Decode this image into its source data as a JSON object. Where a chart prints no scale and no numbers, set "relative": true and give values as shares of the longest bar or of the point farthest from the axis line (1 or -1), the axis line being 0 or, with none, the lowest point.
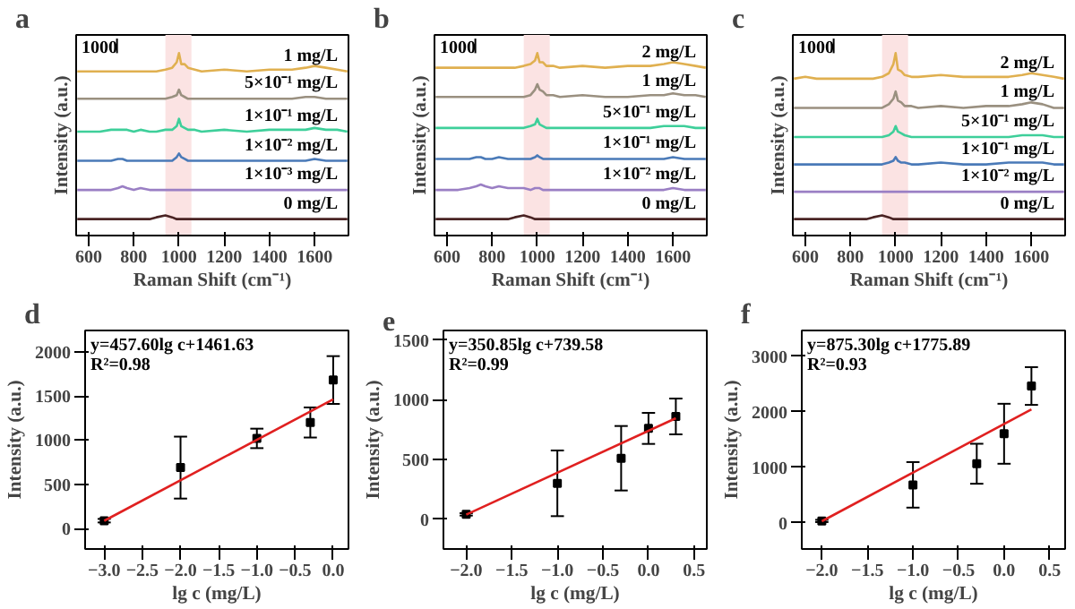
{
  "chart_data": [
    {
      "type": "line",
      "title": "a",
      "xlabel": "Raman Shift (cm⁻¹)",
      "ylabel": "Intensity (a.u.)",
      "relative": true,
      "xlim": [
        545,
        1750
      ],
      "xticks": [
        600,
        800,
        1000,
        1200,
        1400,
        1600
      ],
      "bands": [
        {
          "axis": "x",
          "from": 940,
          "to": 1055,
          "color": "#fbe3e3"
        }
      ],
      "annotations": [
        "1000"
      ],
      "x": [
        550,
        600,
        650,
        700,
        730,
        750,
        770,
        800,
        830,
        870,
        900,
        940,
        970,
        990,
        1000,
        1010,
        1025,
        1040,
        1070,
        1100,
        1200,
        1300,
        1400,
        1500,
        1560,
        1600,
        1650,
        1700,
        1745
      ],
      "series": [
        {
          "name": "0 mg/L",
          "color": "#4a2424",
          "values": [
            0.09,
            0.09,
            0.09,
            0.09,
            0.09,
            0.09,
            0.09,
            0.09,
            0.09,
            0.09,
            0.1,
            0.11,
            0.1,
            0.09,
            0.09,
            0.09,
            0.09,
            0.09,
            0.09,
            0.09,
            0.09,
            0.09,
            0.09,
            0.09,
            0.09,
            0.09,
            0.09,
            0.09,
            0.09
          ]
        },
        {
          "name": "1×10⁻³ mg/L",
          "color": "#9a7fc4",
          "values": [
            0.25,
            0.25,
            0.25,
            0.25,
            0.26,
            0.27,
            0.26,
            0.25,
            0.26,
            0.25,
            0.25,
            0.25,
            0.25,
            0.25,
            0.25,
            0.25,
            0.25,
            0.25,
            0.25,
            0.25,
            0.25,
            0.25,
            0.25,
            0.25,
            0.25,
            0.25,
            0.25,
            0.25,
            0.25
          ]
        },
        {
          "name": "1×10⁻² mg/L",
          "color": "#4a7ab8",
          "values": [
            0.41,
            0.41,
            0.41,
            0.41,
            0.42,
            0.42,
            0.41,
            0.41,
            0.41,
            0.41,
            0.41,
            0.41,
            0.41,
            0.43,
            0.45,
            0.43,
            0.42,
            0.41,
            0.41,
            0.41,
            0.41,
            0.41,
            0.41,
            0.41,
            0.41,
            0.42,
            0.41,
            0.41,
            0.41
          ]
        },
        {
          "name": "1×10⁻¹ mg/L",
          "color": "#3ecf9a",
          "values": [
            0.57,
            0.57,
            0.57,
            0.58,
            0.58,
            0.58,
            0.58,
            0.57,
            0.58,
            0.57,
            0.57,
            0.58,
            0.58,
            0.6,
            0.64,
            0.6,
            0.59,
            0.58,
            0.58,
            0.57,
            0.58,
            0.57,
            0.58,
            0.58,
            0.58,
            0.59,
            0.58,
            0.58,
            0.57
          ]
        },
        {
          "name": "5×10⁻¹ mg/L",
          "color": "#9a9080",
          "values": [
            0.75,
            0.75,
            0.75,
            0.75,
            0.75,
            0.75,
            0.75,
            0.75,
            0.75,
            0.75,
            0.75,
            0.75,
            0.76,
            0.77,
            0.8,
            0.77,
            0.76,
            0.75,
            0.75,
            0.75,
            0.75,
            0.75,
            0.75,
            0.75,
            0.76,
            0.76,
            0.75,
            0.75,
            0.75
          ]
        },
        {
          "name": "1 mg/L",
          "color": "#e0b050",
          "values": [
            0.9,
            0.9,
            0.9,
            0.9,
            0.9,
            0.9,
            0.9,
            0.9,
            0.9,
            0.9,
            0.9,
            0.91,
            0.92,
            0.95,
            1.0,
            0.94,
            0.94,
            0.92,
            0.91,
            0.9,
            0.91,
            0.9,
            0.91,
            0.91,
            0.92,
            0.93,
            0.92,
            0.91,
            0.9
          ]
        }
      ]
    },
    {
      "type": "line",
      "title": "b",
      "xlabel": "Raman Shift (cm⁻¹)",
      "ylabel": "Intensity (a.u.)",
      "relative": true,
      "xlim": [
        545,
        1750
      ],
      "xticks": [
        600,
        800,
        1000,
        1200,
        1400,
        1600
      ],
      "bands": [
        {
          "axis": "x",
          "from": 940,
          "to": 1055,
          "color": "#fbe3e3"
        }
      ],
      "annotations": [
        "1000"
      ],
      "x": [
        550,
        600,
        650,
        700,
        730,
        750,
        770,
        800,
        830,
        870,
        900,
        940,
        970,
        990,
        1000,
        1010,
        1025,
        1040,
        1070,
        1100,
        1200,
        1300,
        1400,
        1500,
        1560,
        1600,
        1650,
        1700,
        1745
      ],
      "series": [
        {
          "name": "0 mg/L",
          "color": "#4a2424",
          "values": [
            0.09,
            0.09,
            0.09,
            0.09,
            0.09,
            0.09,
            0.09,
            0.09,
            0.09,
            0.09,
            0.1,
            0.11,
            0.1,
            0.09,
            0.09,
            0.09,
            0.09,
            0.09,
            0.09,
            0.09,
            0.09,
            0.09,
            0.09,
            0.09,
            0.09,
            0.09,
            0.09,
            0.09,
            0.09
          ]
        },
        {
          "name": "1×10⁻² mg/L",
          "color": "#9a7fc4",
          "values": [
            0.25,
            0.25,
            0.25,
            0.26,
            0.27,
            0.28,
            0.27,
            0.26,
            0.27,
            0.26,
            0.26,
            0.26,
            0.25,
            0.26,
            0.26,
            0.26,
            0.25,
            0.25,
            0.25,
            0.25,
            0.25,
            0.25,
            0.25,
            0.25,
            0.25,
            0.26,
            0.25,
            0.25,
            0.25
          ]
        },
        {
          "name": "1×10⁻¹ mg/L",
          "color": "#4a7ab8",
          "values": [
            0.42,
            0.42,
            0.42,
            0.42,
            0.43,
            0.43,
            0.42,
            0.42,
            0.43,
            0.42,
            0.42,
            0.42,
            0.42,
            0.43,
            0.44,
            0.43,
            0.42,
            0.42,
            0.42,
            0.42,
            0.42,
            0.42,
            0.42,
            0.42,
            0.42,
            0.43,
            0.42,
            0.42,
            0.42
          ]
        },
        {
          "name": "5×10⁻¹ mg/L",
          "color": "#3ecf9a",
          "values": [
            0.59,
            0.59,
            0.59,
            0.59,
            0.59,
            0.59,
            0.59,
            0.59,
            0.59,
            0.59,
            0.59,
            0.59,
            0.6,
            0.61,
            0.64,
            0.61,
            0.6,
            0.59,
            0.59,
            0.59,
            0.59,
            0.59,
            0.59,
            0.59,
            0.6,
            0.6,
            0.6,
            0.59,
            0.59
          ]
        },
        {
          "name": "1 mg/L",
          "color": "#9a9080",
          "values": [
            0.76,
            0.76,
            0.76,
            0.76,
            0.76,
            0.76,
            0.76,
            0.76,
            0.76,
            0.76,
            0.76,
            0.76,
            0.77,
            0.8,
            0.83,
            0.8,
            0.79,
            0.77,
            0.77,
            0.76,
            0.77,
            0.76,
            0.76,
            0.77,
            0.77,
            0.78,
            0.77,
            0.77,
            0.76
          ]
        },
        {
          "name": "2 mg/L",
          "color": "#e0b050",
          "values": [
            0.92,
            0.92,
            0.92,
            0.92,
            0.92,
            0.92,
            0.92,
            0.92,
            0.92,
            0.92,
            0.92,
            0.93,
            0.94,
            0.96,
            1.0,
            0.95,
            0.95,
            0.93,
            0.93,
            0.92,
            0.93,
            0.92,
            0.93,
            0.93,
            0.94,
            0.95,
            0.94,
            0.93,
            0.92
          ]
        }
      ]
    },
    {
      "type": "line",
      "title": "c",
      "xlabel": "Raman Shift (cm⁻¹)",
      "ylabel": "Intensity (a.u.)",
      "relative": true,
      "xlim": [
        545,
        1750
      ],
      "xticks": [
        600,
        800,
        1000,
        1200,
        1400,
        1600
      ],
      "bands": [
        {
          "axis": "x",
          "from": 940,
          "to": 1055,
          "color": "#fbe3e3"
        }
      ],
      "annotations": [
        "1000"
      ],
      "x": [
        550,
        600,
        650,
        700,
        730,
        750,
        770,
        800,
        830,
        870,
        900,
        940,
        970,
        990,
        1000,
        1010,
        1025,
        1040,
        1070,
        1100,
        1200,
        1300,
        1400,
        1500,
        1560,
        1600,
        1650,
        1700,
        1745
      ],
      "series": [
        {
          "name": "0 mg/L",
          "color": "#4a2424",
          "values": [
            0.09,
            0.09,
            0.09,
            0.09,
            0.09,
            0.09,
            0.09,
            0.09,
            0.09,
            0.09,
            0.1,
            0.11,
            0.1,
            0.09,
            0.09,
            0.09,
            0.09,
            0.09,
            0.09,
            0.09,
            0.09,
            0.09,
            0.09,
            0.09,
            0.09,
            0.09,
            0.09,
            0.09,
            0.09
          ]
        },
        {
          "name": "1×10⁻² mg/L",
          "color": "#9a7fc4",
          "values": [
            0.24,
            0.24,
            0.24,
            0.24,
            0.24,
            0.24,
            0.24,
            0.24,
            0.24,
            0.24,
            0.24,
            0.24,
            0.24,
            0.24,
            0.24,
            0.24,
            0.24,
            0.24,
            0.24,
            0.24,
            0.24,
            0.24,
            0.24,
            0.24,
            0.24,
            0.24,
            0.24,
            0.24,
            0.24
          ]
        },
        {
          "name": "1×10⁻¹ mg/L",
          "color": "#4a7ab8",
          "values": [
            0.39,
            0.39,
            0.39,
            0.39,
            0.39,
            0.39,
            0.39,
            0.39,
            0.39,
            0.39,
            0.39,
            0.39,
            0.4,
            0.41,
            0.43,
            0.41,
            0.4,
            0.4,
            0.39,
            0.39,
            0.4,
            0.39,
            0.39,
            0.4,
            0.4,
            0.4,
            0.4,
            0.39,
            0.39
          ]
        },
        {
          "name": "5×10⁻¹ mg/L",
          "color": "#3ecf9a",
          "values": [
            0.54,
            0.54,
            0.54,
            0.54,
            0.54,
            0.54,
            0.54,
            0.54,
            0.54,
            0.54,
            0.54,
            0.54,
            0.55,
            0.57,
            0.6,
            0.57,
            0.56,
            0.55,
            0.54,
            0.54,
            0.54,
            0.54,
            0.54,
            0.54,
            0.55,
            0.55,
            0.55,
            0.54,
            0.54
          ]
        },
        {
          "name": "1 mg/L",
          "color": "#9a9080",
          "values": [
            0.7,
            0.7,
            0.7,
            0.7,
            0.7,
            0.7,
            0.7,
            0.7,
            0.7,
            0.7,
            0.7,
            0.7,
            0.72,
            0.75,
            0.79,
            0.74,
            0.73,
            0.71,
            0.71,
            0.7,
            0.71,
            0.7,
            0.71,
            0.71,
            0.72,
            0.73,
            0.72,
            0.7,
            0.7
          ]
        },
        {
          "name": "2 mg/L",
          "color": "#e0b050",
          "values": [
            0.86,
            0.87,
            0.86,
            0.86,
            0.86,
            0.86,
            0.86,
            0.86,
            0.86,
            0.86,
            0.86,
            0.87,
            0.89,
            0.94,
            1.0,
            0.91,
            0.9,
            0.88,
            0.87,
            0.87,
            0.88,
            0.87,
            0.87,
            0.87,
            0.88,
            0.89,
            0.88,
            0.87,
            0.86
          ]
        }
      ]
    },
    {
      "type": "scatter",
      "title": "d",
      "xlabel": "lg c (mg/L)",
      "ylabel": "Intensity (a.u.)",
      "xlim": [
        -3.25,
        0.2
      ],
      "ylim": [
        -230,
        2240
      ],
      "xticks": [
        {
          "value": -3,
          "label": "−3.0"
        },
        {
          "value": -2.5,
          "label": "−2.5"
        },
        {
          "value": -2,
          "label": "−2.0"
        },
        {
          "value": -1.5,
          "label": "−1.5"
        },
        {
          "value": -1,
          "label": "−1.0"
        },
        {
          "value": -0.5,
          "label": "−0.5"
        },
        {
          "value": 0,
          "label": "0.0"
        }
      ],
      "yticks": [
        0,
        500,
        1000,
        1500,
        2000
      ],
      "annotations": [
        "y=457.60lg c+1461.63",
        "R²=0.98"
      ],
      "series": [
        {
          "type": "scatter",
          "marker": "square",
          "color": "#000000",
          "x": [
            -3,
            -2,
            -1,
            -0.3,
            0
          ],
          "values": [
            90,
            690,
            1020,
            1200,
            1680
          ],
          "errors": [
            20,
            350,
            110,
            170,
            270
          ]
        },
        {
          "type": "line",
          "color": "#e02020",
          "x": [
            -3,
            0
          ],
          "values": [
            89,
            1462
          ]
        }
      ]
    },
    {
      "type": "scatter",
      "title": "e",
      "xlabel": "lg c (mg/L)",
      "ylabel": "Intensity (a.u.)",
      "xlim": [
        -2.25,
        0.64
      ],
      "ylim": [
        -250,
        1580
      ],
      "xticks": [
        {
          "value": -2,
          "label": "−2.0"
        },
        {
          "value": -1.5,
          "label": "−1.5"
        },
        {
          "value": -1,
          "label": "−1.0"
        },
        {
          "value": -0.5,
          "label": "−0.5"
        },
        {
          "value": 0,
          "label": "0.0"
        },
        {
          "value": 0.5,
          "label": "0.5"
        }
      ],
      "yticks": [
        0,
        500,
        1000,
        1500
      ],
      "annotations": [
        "y=350.85lg c+739.58",
        "R²=0.99"
      ],
      "series": [
        {
          "type": "scatter",
          "marker": "square",
          "color": "#000000",
          "x": [
            -2,
            -1,
            -0.3,
            0,
            0.3
          ],
          "values": [
            40,
            300,
            510,
            760,
            860
          ],
          "errors": [
            10,
            275,
            270,
            130,
            150
          ]
        },
        {
          "type": "line",
          "color": "#e02020",
          "x": [
            -2,
            0.3
          ],
          "values": [
            38,
            845
          ]
        }
      ]
    },
    {
      "type": "scatter",
      "title": "f",
      "xlabel": "lg c (mg/L)",
      "ylabel": "Intensity (a.u.)",
      "xlim": [
        -2.22,
        0.67
      ],
      "ylim": [
        -475,
        3460
      ],
      "xticks": [
        {
          "value": -2,
          "label": "−2.0"
        },
        {
          "value": -1.5,
          "label": "−1.5"
        },
        {
          "value": -1,
          "label": "−1.0"
        },
        {
          "value": -0.5,
          "label": "−0.5"
        },
        {
          "value": 0,
          "label": "0.0"
        },
        {
          "value": 0.5,
          "label": "0.5"
        }
      ],
      "yticks": [
        0,
        1000,
        2000,
        3000
      ],
      "annotations": [
        "y=875.30lg c+1775.89",
        "R²=0.93"
      ],
      "series": [
        {
          "type": "scatter",
          "marker": "square",
          "color": "#000000",
          "x": [
            -2,
            -1,
            -0.3,
            0,
            0.3
          ],
          "values": [
            30,
            680,
            1060,
            1600,
            2460
          ],
          "errors": [
            20,
            410,
            360,
            540,
            340
          ]
        },
        {
          "type": "line",
          "color": "#e02020",
          "x": [
            -2,
            0.3
          ],
          "values": [
            25,
            2038
          ]
        }
      ]
    }
  ]
}
